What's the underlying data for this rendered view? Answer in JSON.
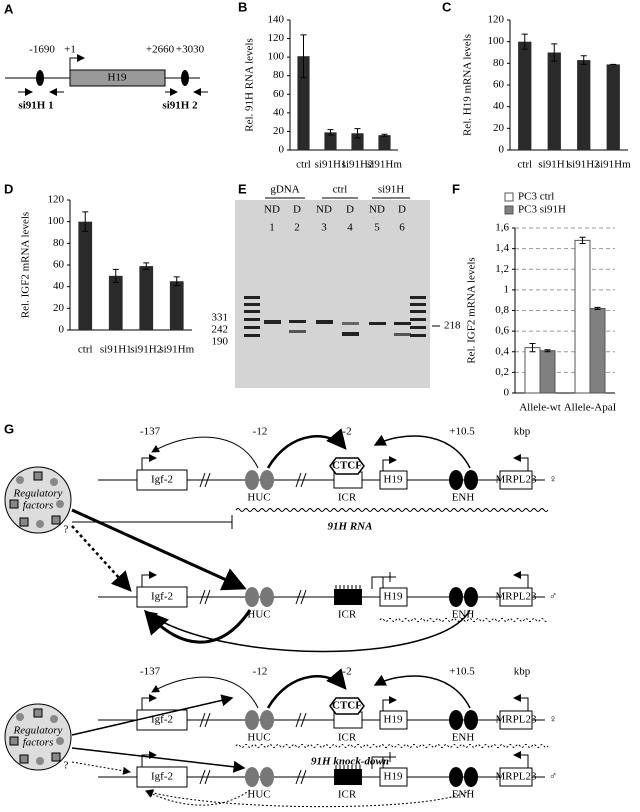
{
  "panel_A": {
    "label": "A",
    "positions": [
      "-1690",
      "+1",
      "+2660",
      "+3030"
    ],
    "gene": "H19",
    "primers": [
      "si91H 1",
      "si91H 2"
    ]
  },
  "chart_data": [
    {
      "type": "bar",
      "panel": "B",
      "ylabel": "Rel. 91H RNA levels",
      "categories": [
        "ctrl",
        "si91H1",
        "si91H2",
        "si91Hm"
      ],
      "values": [
        101,
        19,
        18,
        16
      ],
      "errors": [
        23,
        3,
        5,
        1
      ],
      "color": "#2a2a2a",
      "ylim": [
        0,
        140
      ],
      "yticks": [
        0,
        20,
        40,
        60,
        80,
        100,
        120,
        140
      ],
      "grid": false
    },
    {
      "type": "bar",
      "panel": "C",
      "ylabel": "Rel. H19 mRNA levels",
      "categories": [
        "ctrl",
        "si91H1",
        "si91H2",
        "si91Hm"
      ],
      "values": [
        100,
        90,
        83,
        79
      ],
      "errors": [
        7,
        8,
        4,
        0
      ],
      "color": "#2a2a2a",
      "ylim": [
        0,
        120
      ],
      "yticks": [
        0,
        20,
        40,
        60,
        80,
        100,
        120
      ],
      "grid": false
    },
    {
      "type": "bar",
      "panel": "D",
      "ylabel": "Rel. IGF2 mRNA levels",
      "categories": [
        "ctrl",
        "si91H1",
        "si91H2",
        "si91Hm"
      ],
      "values": [
        100,
        50,
        59,
        45
      ],
      "errors": [
        9,
        6,
        3,
        4
      ],
      "color": "#2a2a2a",
      "ylim": [
        0,
        120
      ],
      "yticks": [
        0,
        20,
        40,
        60,
        80,
        100,
        120
      ],
      "grid": false
    },
    {
      "type": "bar",
      "panel": "F",
      "ylabel": "Rel. IGF2 mRNA levels",
      "categories": [
        "Allele-wt",
        "Allele-ApaI"
      ],
      "series": [
        {
          "name": "PC3 ctrl",
          "color": "#ffffff",
          "values": [
            0.44,
            1.48
          ],
          "errors": [
            0.04,
            0.03
          ]
        },
        {
          "name": "PC3 si91H",
          "color": "#808080",
          "values": [
            0.41,
            0.82
          ],
          "errors": [
            0.01,
            0.01
          ]
        }
      ],
      "ylim": [
        0,
        1.6
      ],
      "yticks": [
        0,
        {
          "value": 0.2,
          "label": "0,2"
        },
        {
          "value": 0.4,
          "label": "0,4"
        },
        {
          "value": 0.6,
          "label": "0,6"
        },
        {
          "value": 0.8,
          "label": "0,8"
        },
        1,
        {
          "value": 1.2,
          "label": "1,2"
        },
        {
          "value": 1.4,
          "label": "1,4"
        },
        {
          "value": 1.6,
          "label": "1,6"
        }
      ],
      "grid": true
    }
  ],
  "panel_E": {
    "label": "E",
    "groups": [
      "gDNA",
      "ctrl",
      "si91H"
    ],
    "lanes": [
      "ND",
      "D",
      "ND",
      "D",
      "ND",
      "D"
    ],
    "lane_numbers": [
      "1",
      "2",
      "3",
      "4",
      "5",
      "6"
    ],
    "markers": [
      "331",
      "242",
      "190"
    ],
    "band": "218"
  },
  "panel_G": {
    "label": "G",
    "scale": [
      "-137",
      "-12",
      "-2",
      "+10.5",
      "kbp"
    ],
    "elements": {
      "igf2": "Igf-2",
      "huc": "HUC",
      "ctcf": "CTCF",
      "icr": "ICR",
      "h19": "H19",
      "enh": "ENH",
      "mrpl23": "MRPL23"
    },
    "rna": "91H RNA",
    "knockdown": "91H knock-down",
    "regulatory": [
      "Regulatory",
      "factors"
    ],
    "question": "?",
    "female": "♀",
    "male": "♂"
  }
}
